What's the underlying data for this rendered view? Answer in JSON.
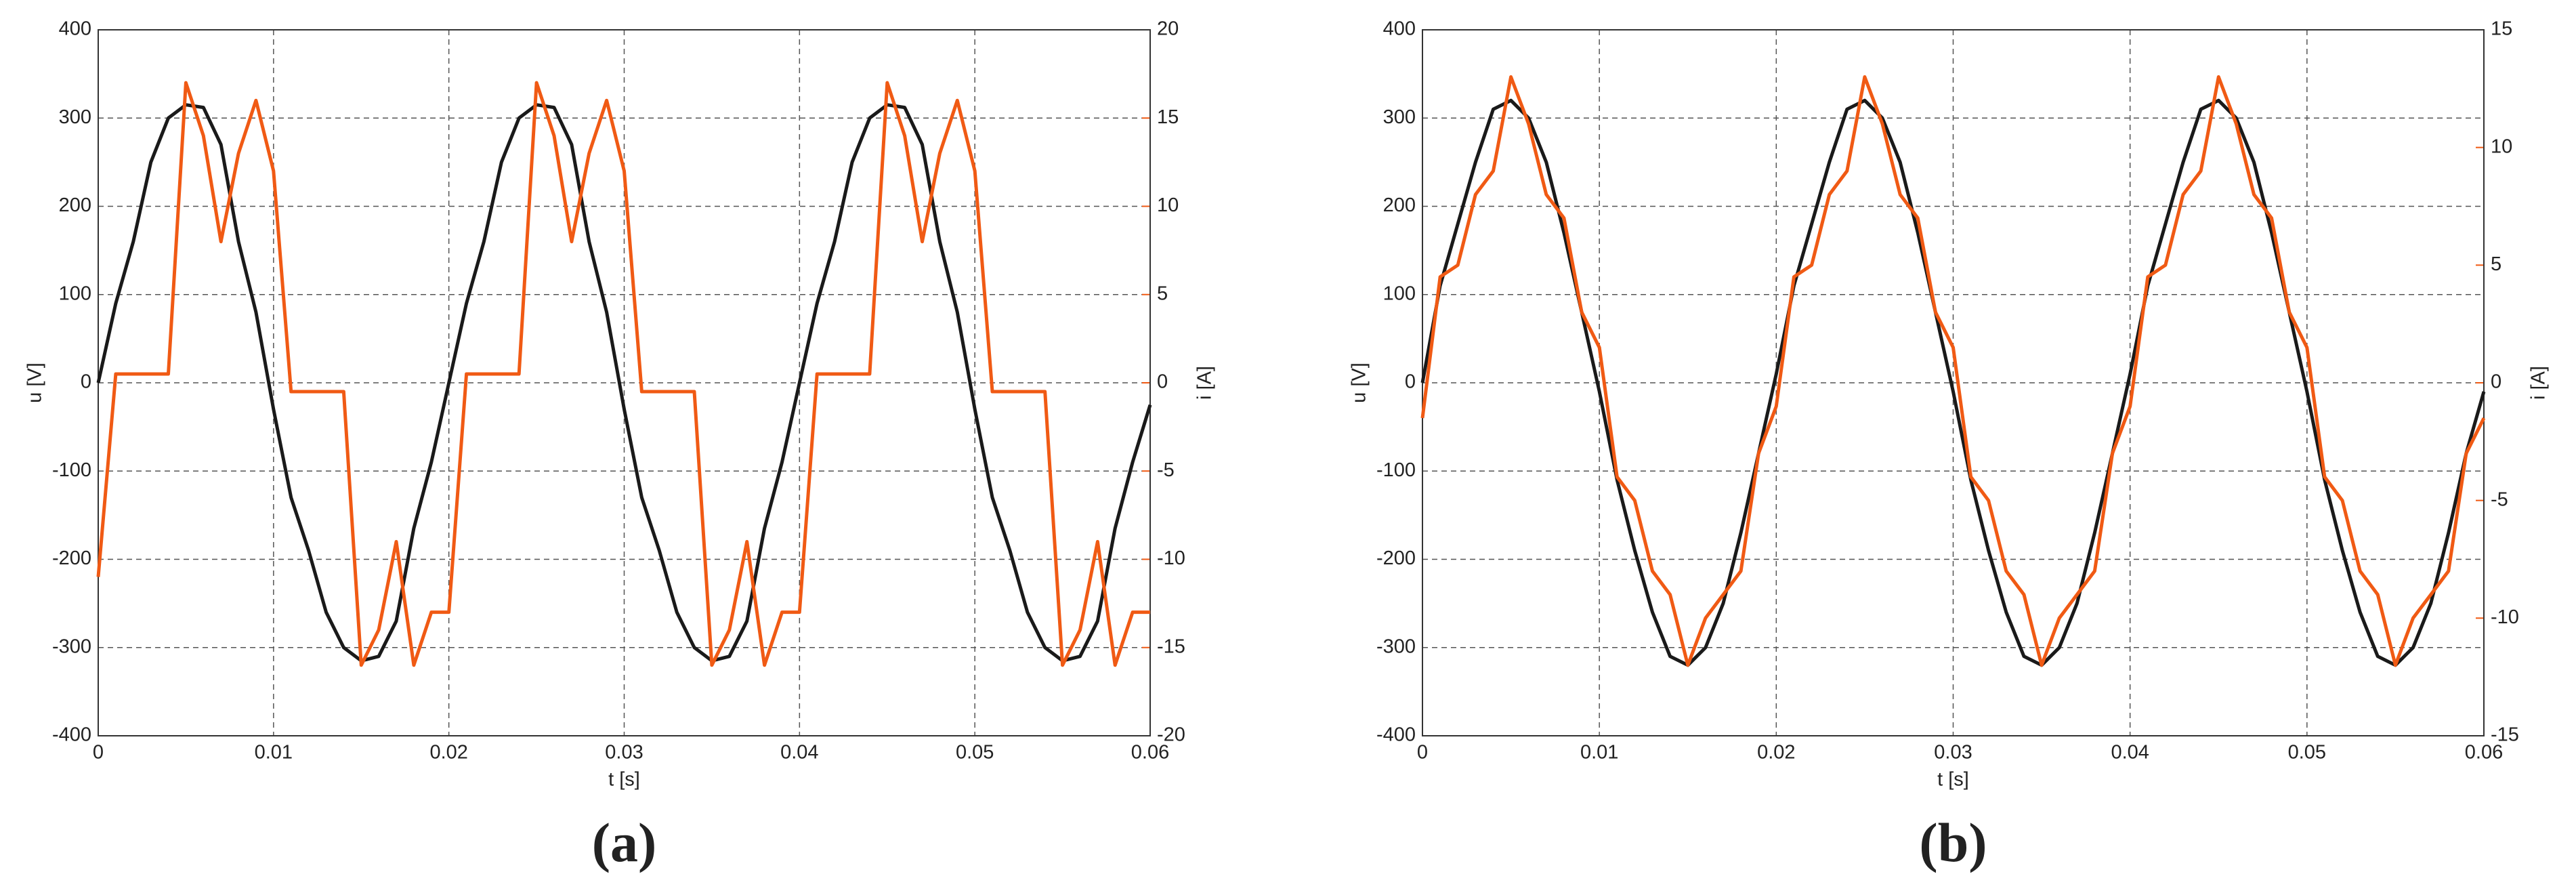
{
  "chart_data": [
    {
      "type": "line",
      "label": "(a)",
      "xlabel": "t [s]",
      "ylabel": "u [V]",
      "y2label": "i [A]",
      "grid": true,
      "x": [
        0,
        0.001,
        0.002,
        0.003,
        0.004,
        0.005,
        0.006,
        0.007,
        0.008,
        0.009,
        0.01,
        0.011,
        0.012,
        0.013,
        0.014,
        0.015,
        0.016,
        0.017,
        0.018,
        0.019,
        0.02,
        0.021,
        0.022,
        0.023,
        0.024,
        0.025,
        0.026,
        0.027,
        0.028,
        0.029,
        0.03,
        0.031,
        0.032,
        0.033,
        0.034,
        0.035,
        0.036,
        0.037,
        0.038,
        0.039,
        0.04,
        0.041,
        0.042,
        0.043,
        0.044,
        0.045,
        0.046,
        0.047,
        0.048,
        0.049,
        0.05,
        0.051,
        0.052,
        0.053,
        0.054,
        0.055,
        0.056,
        0.057,
        0.058,
        0.059,
        0.06
      ],
      "xlim": [
        0,
        0.06
      ],
      "xticks": [
        0,
        0.01,
        0.02,
        0.03,
        0.04,
        0.05,
        0.06
      ],
      "ylim": [
        -400,
        400
      ],
      "yticks": [
        -400,
        -300,
        -200,
        -100,
        0,
        100,
        200,
        300,
        400
      ],
      "y2lim": [
        -20,
        20
      ],
      "y2ticks": [
        -20,
        -15,
        -10,
        -5,
        0,
        5,
        10,
        15,
        20
      ],
      "series": [
        {
          "name": "u",
          "color": "#1a1a1a",
          "values": [
            0,
            90,
            160,
            250,
            300,
            315,
            312,
            270,
            160,
            80,
            -30,
            -130,
            -190,
            -260,
            -300,
            -315,
            -310,
            -270,
            -165,
            -90,
            0,
            90,
            160,
            250,
            300,
            315,
            312,
            270,
            160,
            80,
            -30,
            -130,
            -190,
            -260,
            -300,
            -315,
            -310,
            -270,
            -165,
            -90,
            0,
            90,
            160,
            250,
            300,
            315,
            312,
            270,
            160,
            80,
            -30,
            -130,
            -190,
            -260,
            -300,
            -315,
            -310,
            -270,
            -165,
            -90,
            -25
          ]
        },
        {
          "name": "i",
          "color": "#f05a14",
          "axis": "y2",
          "values": [
            -11,
            0.5,
            0.5,
            0.5,
            0.5,
            17,
            14,
            8,
            13,
            16,
            12,
            -0.5,
            -0.5,
            -0.5,
            -0.5,
            -16,
            -14,
            -9,
            -16,
            -13,
            -13,
            0.5,
            0.5,
            0.5,
            0.5,
            17,
            14,
            8,
            13,
            16,
            12,
            -0.5,
            -0.5,
            -0.5,
            -0.5,
            -16,
            -14,
            -9,
            -16,
            -13,
            -13,
            0.5,
            0.5,
            0.5,
            0.5,
            17,
            14,
            8,
            13,
            16,
            12,
            -0.5,
            -0.5,
            -0.5,
            -0.5,
            -16,
            -14,
            -9,
            -16,
            -13,
            -13
          ]
        }
      ]
    },
    {
      "type": "line",
      "label": "(b)",
      "xlabel": "t [s]",
      "ylabel": "u [V]",
      "y2label": "i [A]",
      "grid": true,
      "x": [
        0,
        0.001,
        0.002,
        0.003,
        0.004,
        0.005,
        0.006,
        0.007,
        0.008,
        0.009,
        0.01,
        0.011,
        0.012,
        0.013,
        0.014,
        0.015,
        0.016,
        0.017,
        0.018,
        0.019,
        0.02,
        0.021,
        0.022,
        0.023,
        0.024,
        0.025,
        0.026,
        0.027,
        0.028,
        0.029,
        0.03,
        0.031,
        0.032,
        0.033,
        0.034,
        0.035,
        0.036,
        0.037,
        0.038,
        0.039,
        0.04,
        0.041,
        0.042,
        0.043,
        0.044,
        0.045,
        0.046,
        0.047,
        0.048,
        0.049,
        0.05,
        0.051,
        0.052,
        0.053,
        0.054,
        0.055,
        0.056,
        0.057,
        0.058,
        0.059,
        0.06
      ],
      "xlim": [
        0,
        0.06
      ],
      "xticks": [
        0,
        0.01,
        0.02,
        0.03,
        0.04,
        0.05,
        0.06
      ],
      "ylim": [
        -400,
        400
      ],
      "yticks": [
        -400,
        -300,
        -200,
        -100,
        0,
        100,
        200,
        300,
        400
      ],
      "y2lim": [
        -15,
        15
      ],
      "y2ticks": [
        -15,
        -10,
        -5,
        0,
        5,
        10,
        15
      ],
      "series": [
        {
          "name": "u",
          "color": "#1a1a1a",
          "values": [
            0,
            110,
            180,
            250,
            310,
            320,
            300,
            250,
            170,
            80,
            -10,
            -110,
            -190,
            -260,
            -310,
            -320,
            -300,
            -250,
            -170,
            -80,
            10,
            110,
            180,
            250,
            310,
            320,
            300,
            250,
            170,
            80,
            -10,
            -110,
            -190,
            -260,
            -310,
            -320,
            -300,
            -250,
            -170,
            -80,
            10,
            110,
            180,
            250,
            310,
            320,
            300,
            250,
            170,
            80,
            -10,
            -110,
            -190,
            -260,
            -310,
            -320,
            -300,
            -250,
            -170,
            -80,
            -10
          ]
        },
        {
          "name": "i",
          "color": "#f05a14",
          "axis": "y2",
          "values": [
            -1.5,
            4.5,
            5,
            8,
            9,
            13,
            11,
            8,
            7,
            3,
            1.5,
            -4,
            -5,
            -8,
            -9,
            -12,
            -10,
            -9,
            -8,
            -3,
            -1,
            4.5,
            5,
            8,
            9,
            13,
            11,
            8,
            7,
            3,
            1.5,
            -4,
            -5,
            -8,
            -9,
            -12,
            -10,
            -9,
            -8,
            -3,
            -1,
            4.5,
            5,
            8,
            9,
            13,
            11,
            8,
            7,
            3,
            1.5,
            -4,
            -5,
            -8,
            -9,
            -12,
            -10,
            -9,
            -8,
            -3,
            -1.5
          ]
        }
      ]
    }
  ]
}
